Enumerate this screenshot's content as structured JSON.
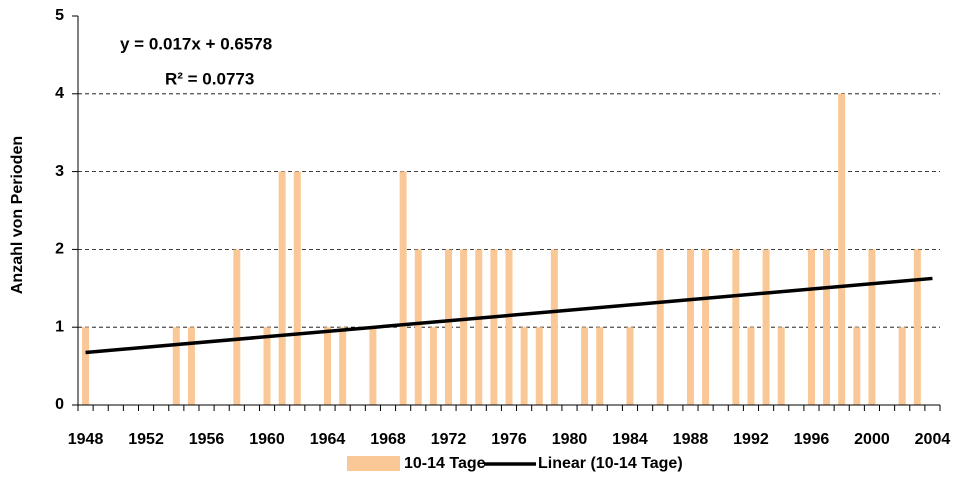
{
  "chart_data": {
    "type": "bar",
    "y_axis_label": "Anzahl von Perioden",
    "equation": "y = 0.017x + 0.6578",
    "r_squared": "R² = 0.0773",
    "categories": [
      "1948",
      null,
      null,
      null,
      "1952",
      null,
      null,
      null,
      "1956",
      null,
      null,
      null,
      "1960",
      null,
      null,
      null,
      "1964",
      null,
      null,
      null,
      "1968",
      null,
      null,
      null,
      "1972",
      null,
      null,
      null,
      "1976",
      null,
      null,
      null,
      "1980",
      null,
      null,
      null,
      "1984",
      null,
      null,
      null,
      "1988",
      null,
      null,
      null,
      "1992",
      null,
      null,
      null,
      "1996",
      null,
      null,
      null,
      "2000",
      null,
      null,
      null,
      "2004"
    ],
    "series": [
      {
        "name": "10-14 Tage",
        "color": "#fac896",
        "values": [
          1,
          0,
          0,
          0,
          0,
          0,
          1,
          1,
          0,
          0,
          2,
          0,
          1,
          3,
          3,
          0,
          1,
          1,
          0,
          1,
          0,
          3,
          2,
          1,
          2,
          2,
          2,
          2,
          2,
          1,
          1,
          2,
          0,
          1,
          1,
          0,
          1,
          0,
          2,
          0,
          2,
          2,
          0,
          2,
          1,
          2,
          1,
          0,
          2,
          2,
          4,
          1,
          2,
          0,
          1,
          2,
          0
        ]
      }
    ],
    "trendline": {
      "name": "Linear (10-14 Tage)",
      "color": "#000000",
      "slope": 0.017,
      "intercept": 0.6578
    },
    "ylim": [
      0,
      5
    ],
    "yticks": [
      0,
      1,
      2,
      3,
      4,
      5
    ],
    "grid": true
  }
}
